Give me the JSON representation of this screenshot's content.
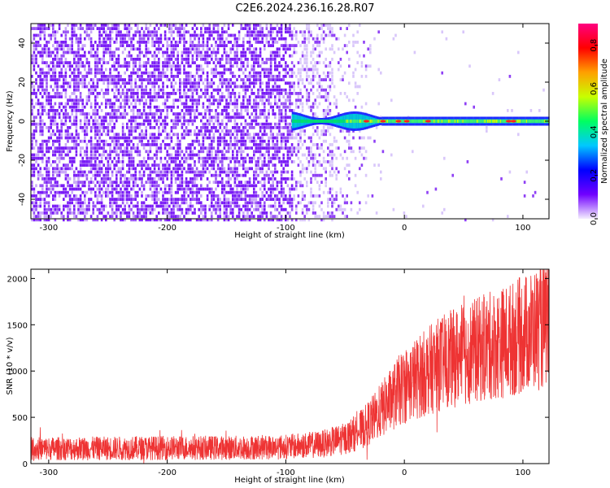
{
  "title": "C2E6.2024.236.16.28.R07",
  "chart_data": [
    {
      "type": "heatmap",
      "name": "spectrogram",
      "xlabel": "Height of straight line (km)",
      "ylabel": "Frequency (Hz)",
      "xlim": [
        -315,
        122
      ],
      "ylim": [
        -50,
        50
      ],
      "xticks": [
        -300,
        -200,
        -100,
        0,
        100
      ],
      "yticks": [
        -40,
        -20,
        0,
        20,
        40
      ],
      "grid": false,
      "colorbar": {
        "label": "Normalized spectral amplitude",
        "range": [
          0.0,
          0.9
        ],
        "ticks": [
          0.0,
          0.2,
          0.4,
          0.6,
          0.8
        ],
        "colors": [
          "#f4eeff",
          "#7000ff",
          "#0000ff",
          "#00c8ff",
          "#00ff60",
          "#c8ff00",
          "#ffa000",
          "#ff0000",
          "#ff0080"
        ]
      },
      "features": {
        "noise_region_x": [
          -315,
          -60
        ],
        "carrier_start_x": -95,
        "carrier_frequency_hz": 0
      }
    },
    {
      "type": "line",
      "name": "snr",
      "xlabel": "Height of straight line (km)",
      "ylabel": "SNR (10 * v/v)",
      "xlim": [
        -315,
        122
      ],
      "ylim": [
        0,
        2100
      ],
      "xticks": [
        -300,
        -200,
        -100,
        0,
        100
      ],
      "yticks": [
        0,
        500,
        1000,
        1500,
        2000
      ],
      "grid": false,
      "color": "#ee3333",
      "trend": {
        "x": [
          -315,
          -250,
          -200,
          -150,
          -100,
          -70,
          -50,
          -35,
          -25,
          -15,
          -5,
          0,
          10,
          20,
          30,
          50,
          70,
          90,
          110,
          122
        ],
        "y": [
          160,
          165,
          170,
          170,
          180,
          210,
          270,
          380,
          500,
          640,
          780,
          840,
          920,
          1000,
          1080,
          1180,
          1260,
          1340,
          1450,
          1500
        ]
      }
    }
  ]
}
